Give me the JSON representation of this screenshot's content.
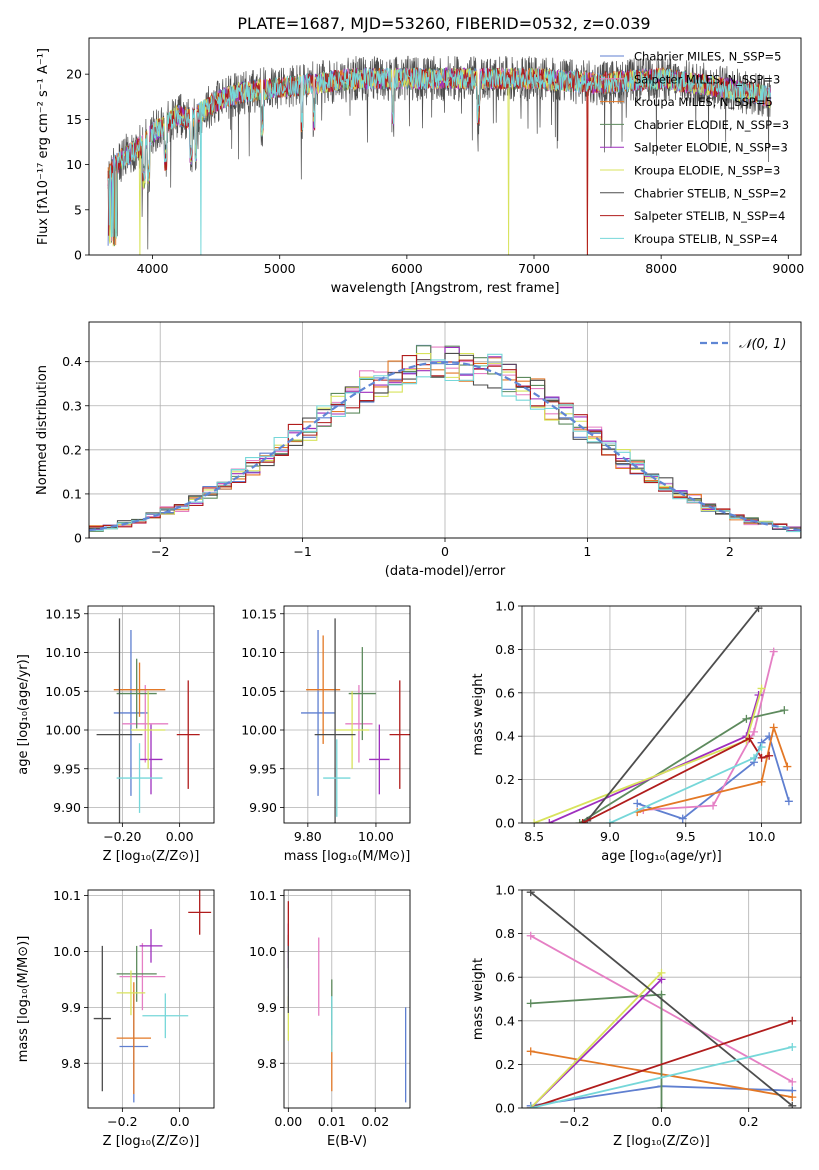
{
  "chart_data": [
    {
      "id": "spectrum",
      "type": "line",
      "title": "PLATE=1687, MJD=53260, FIBERID=0532, z=0.039",
      "xlabel": "wavelength [Angstrom, rest frame]",
      "ylabel": "Flux [fλ10⁻¹⁷ erg cm⁻² s⁻¹ A⁻¹]",
      "xlim": [
        3500,
        9100
      ],
      "ylim": [
        0,
        24
      ],
      "xticks": [
        4000,
        5000,
        6000,
        7000,
        8000,
        9000
      ],
      "yticks": [
        0,
        5,
        10,
        15,
        20
      ],
      "grid": false,
      "legend_position": "top-right",
      "continuum": {
        "x": [
          3650,
          3700,
          3800,
          3900,
          4000,
          4100,
          4200,
          4300,
          4400,
          4500,
          4700,
          5000,
          5300,
          5600,
          6000,
          6500,
          7000,
          7500,
          8000,
          8500,
          8850
        ],
        "y": [
          8.5,
          10,
          11,
          12,
          13.5,
          14.5,
          15.5,
          15,
          16,
          17,
          18,
          18.5,
          19,
          19.5,
          19.5,
          19.5,
          19.5,
          19,
          19.5,
          18.5,
          17.5
        ]
      },
      "series": [
        {
          "name": "Chabrier MILES, N_SSP=5",
          "color": "#5f7fd0"
        },
        {
          "name": "Salpeter MILES, N_SSP=3",
          "color": "#e57fc4"
        },
        {
          "name": "Kroupa MILES, N_SSP=5",
          "color": "#e37826"
        },
        {
          "name": "Chabrier ELODIE, N_SSP=3",
          "color": "#5d8a5d"
        },
        {
          "name": "Salpeter ELODIE, N_SSP=3",
          "color": "#9e2fbe"
        },
        {
          "name": "Kroupa ELODIE, N_SSP=3",
          "color": "#d8e35c"
        },
        {
          "name": "Chabrier STELIB, N_SSP=2",
          "color": "#4d4d4d"
        },
        {
          "name": "Salpeter STELIB, N_SSP=4",
          "color": "#b01c1c"
        },
        {
          "name": "Kroupa STELIB, N_SSP=4",
          "color": "#76d7d9"
        }
      ]
    },
    {
      "id": "residuals",
      "type": "line",
      "xlabel": "(data-model)/error",
      "ylabel": "Normed distribution",
      "xlim": [
        -2.5,
        2.5
      ],
      "ylim": [
        0,
        0.49
      ],
      "xticks": [
        -2,
        -1,
        0,
        1,
        2
      ],
      "yticks": [
        0.0,
        0.1,
        0.2,
        0.3,
        0.4
      ],
      "grid": true,
      "legend": [
        {
          "name": "𝒩(0, 1)",
          "style": "dashed",
          "color": "#5f86d4"
        }
      ],
      "legend_position": "top-right"
    },
    {
      "id": "age_vs_Z",
      "type": "scatter",
      "xlabel": "Z [log₁₀(Z/Z⊙)]",
      "ylabel": "age  [log₁₀(age/yr)]",
      "xlim": [
        -0.32,
        0.12
      ],
      "ylim": [
        9.88,
        10.16
      ],
      "xticks": [
        -0.2,
        0.0
      ],
      "yticks": [
        9.9,
        9.95,
        10.0,
        10.05,
        10.1,
        10.15
      ],
      "grid": true,
      "points": [
        {
          "color": "#5f7fd0",
          "x": -0.17,
          "xerr": 0.06,
          "y": 10.022,
          "yerr": 0.107
        },
        {
          "color": "#e57fc4",
          "x": -0.12,
          "xerr": 0.08,
          "y": 10.008,
          "yerr": 0.05
        },
        {
          "color": "#e37826",
          "x": -0.14,
          "xerr": 0.09,
          "y": 10.052,
          "yerr": 0.035
        },
        {
          "color": "#5d8a5d",
          "x": -0.15,
          "xerr": 0.07,
          "y": 10.047,
          "yerr": 0.045
        },
        {
          "color": "#9e2fbe",
          "x": -0.1,
          "xerr": 0.04,
          "y": 9.962,
          "yerr": 0.045
        },
        {
          "color": "#d8e35c",
          "x": -0.11,
          "xerr": 0.06,
          "y": 10.0,
          "yerr": 0.05
        },
        {
          "color": "#4d4d4d",
          "x": -0.21,
          "xerr": 0.08,
          "y": 9.994,
          "yerr": 0.15
        },
        {
          "color": "#b01c1c",
          "x": 0.03,
          "xerr": 0.04,
          "y": 9.994,
          "yerr": 0.07
        },
        {
          "color": "#76d7d9",
          "x": -0.14,
          "xerr": 0.08,
          "y": 9.938,
          "yerr": 0.045
        }
      ]
    },
    {
      "id": "age_vs_mass",
      "type": "scatter",
      "xlabel": "mass [log₁₀(M/M⊙)]",
      "ylabel": "",
      "xlim": [
        9.73,
        10.1
      ],
      "ylim": [
        9.88,
        10.16
      ],
      "xticks": [
        9.8,
        10.0
      ],
      "yticks": [
        9.9,
        9.95,
        10.0,
        10.05,
        10.1,
        10.15
      ],
      "grid": true,
      "points": [
        {
          "color": "#5f7fd0",
          "x": 9.83,
          "xerr": 0.05,
          "y": 10.022,
          "yerr": 0.107
        },
        {
          "color": "#e57fc4",
          "x": 9.95,
          "xerr": 0.04,
          "y": 10.008,
          "yerr": 0.05
        },
        {
          "color": "#e37826",
          "x": 9.845,
          "xerr": 0.05,
          "y": 10.052,
          "yerr": 0.07
        },
        {
          "color": "#5d8a5d",
          "x": 9.96,
          "xerr": 0.04,
          "y": 10.047,
          "yerr": 0.06
        },
        {
          "color": "#9e2fbe",
          "x": 10.01,
          "xerr": 0.03,
          "y": 9.962,
          "yerr": 0.045
        },
        {
          "color": "#d8e35c",
          "x": 9.93,
          "xerr": 0.05,
          "y": 10.0,
          "yerr": 0.05
        },
        {
          "color": "#4d4d4d",
          "x": 9.88,
          "xerr": 0.06,
          "y": 9.994,
          "yerr": 0.15
        },
        {
          "color": "#b01c1c",
          "x": 10.07,
          "xerr": 0.03,
          "y": 9.994,
          "yerr": 0.07
        },
        {
          "color": "#76d7d9",
          "x": 9.885,
          "xerr": 0.04,
          "y": 9.938,
          "yerr": 0.05
        }
      ]
    },
    {
      "id": "weight_vs_age",
      "type": "line",
      "xlabel": "age  [log₁₀(age/yr)]",
      "ylabel": "mass weight",
      "xlim": [
        8.42,
        10.26
      ],
      "ylim": [
        0,
        1.0
      ],
      "xticks": [
        8.5,
        9.0,
        9.5,
        10.0
      ],
      "yticks": [
        0.0,
        0.2,
        0.4,
        0.6,
        0.8,
        1.0
      ],
      "grid": true,
      "series": [
        {
          "color": "#5f7fd0",
          "x": [
            9.18,
            9.48,
            9.95,
            10.0,
            10.05,
            10.18
          ],
          "y": [
            0.09,
            0.02,
            0.28,
            0.37,
            0.4,
            0.1
          ]
        },
        {
          "color": "#e57fc4",
          "x": [
            9.22,
            9.68,
            9.95,
            10.08
          ],
          "y": [
            0.06,
            0.08,
            0.42,
            0.79
          ]
        },
        {
          "color": "#e37826",
          "x": [
            9.18,
            10.0,
            10.08,
            10.17
          ],
          "y": [
            0.05,
            0.19,
            0.44,
            0.26
          ]
        },
        {
          "color": "#5d8a5d",
          "x": [
            8.8,
            9.9,
            10.15
          ],
          "y": [
            0.0,
            0.48,
            0.52
          ]
        },
        {
          "color": "#9e2fbe",
          "x": [
            8.6,
            9.9,
            9.98
          ],
          "y": [
            0.0,
            0.4,
            0.59
          ]
        },
        {
          "color": "#d8e35c",
          "x": [
            8.5,
            9.9,
            10.0
          ],
          "y": [
            0.0,
            0.38,
            0.62
          ]
        },
        {
          "color": "#4d4d4d",
          "x": [
            8.85,
            9.98
          ],
          "y": [
            0.01,
            0.99
          ]
        },
        {
          "color": "#b01c1c",
          "x": [
            8.82,
            9.92,
            10.0,
            10.05
          ],
          "y": [
            0.0,
            0.39,
            0.3,
            0.31
          ]
        },
        {
          "color": "#76d7d9",
          "x": [
            9.0,
            9.95,
            10.0
          ],
          "y": [
            0.0,
            0.3,
            0.35
          ]
        }
      ]
    },
    {
      "id": "mass_vs_Z",
      "type": "scatter",
      "xlabel": "Z [log₁₀(Z/Z⊙)]",
      "ylabel": "mass [log₁₀(M/M⊙)]",
      "xlim": [
        -0.32,
        0.12
      ],
      "ylim": [
        9.72,
        10.11
      ],
      "xticks": [
        -0.2,
        0.0
      ],
      "yticks": [
        9.8,
        9.9,
        10.0,
        10.1
      ],
      "grid": true,
      "points": [
        {
          "color": "#5f7fd0",
          "x": -0.16,
          "xerr": 0.05,
          "y": 9.83,
          "yerr": 0.1
        },
        {
          "color": "#e57fc4",
          "x": -0.13,
          "xerr": 0.08,
          "y": 9.955,
          "yerr": 0.06
        },
        {
          "color": "#e37826",
          "x": -0.16,
          "xerr": 0.06,
          "y": 9.845,
          "yerr": 0.1
        },
        {
          "color": "#5d8a5d",
          "x": -0.15,
          "xerr": 0.07,
          "y": 9.96,
          "yerr": 0.05
        },
        {
          "color": "#9e2fbe",
          "x": -0.1,
          "xerr": 0.04,
          "y": 10.01,
          "yerr": 0.03
        },
        {
          "color": "#d8e35c",
          "x": -0.17,
          "xerr": 0.05,
          "y": 9.926,
          "yerr": 0.04
        },
        {
          "color": "#4d4d4d",
          "x": -0.27,
          "xerr": 0.03,
          "y": 9.88,
          "yerr": 0.13
        },
        {
          "color": "#b01c1c",
          "x": 0.07,
          "xerr": 0.04,
          "y": 10.07,
          "yerr": 0.04
        },
        {
          "color": "#76d7d9",
          "x": -0.05,
          "xerr": 0.08,
          "y": 9.885,
          "yerr": 0.04
        }
      ]
    },
    {
      "id": "mass_vs_EBV",
      "type": "scatter",
      "xlabel": "E(B-V)",
      "ylabel": "",
      "xlim": [
        -0.001,
        0.028
      ],
      "ylim": [
        9.72,
        10.11
      ],
      "xticks": [
        0.0,
        0.01,
        0.02
      ],
      "yticks": [
        9.8,
        9.9,
        10.0,
        10.1
      ],
      "grid": true,
      "points": [
        {
          "color": "#5f7fd0",
          "x": 0.027,
          "xerr": 0,
          "y": 9.815,
          "yerr": 0.085
        },
        {
          "color": "#e57fc4",
          "x": 0.007,
          "xerr": 0,
          "y": 9.955,
          "yerr": 0.07
        },
        {
          "color": "#e37826",
          "x": 0.01,
          "xerr": 0,
          "y": 9.8,
          "yerr": 0.05
        },
        {
          "color": "#5d8a5d",
          "x": 0.01,
          "xerr": 0,
          "y": 9.9,
          "yerr": 0.05
        },
        {
          "color": "#9e2fbe",
          "x": 0.0,
          "xerr": 0,
          "y": 10.01,
          "yerr": 0.04
        },
        {
          "color": "#d8e35c",
          "x": 0.0,
          "xerr": 0,
          "y": 9.88,
          "yerr": 0.04
        },
        {
          "color": "#4d4d4d",
          "x": 0.0,
          "xerr": 0,
          "y": 9.96,
          "yerr": 0.07
        },
        {
          "color": "#b01c1c",
          "x": 0.0,
          "xerr": 0,
          "y": 10.05,
          "yerr": 0.04
        },
        {
          "color": "#76d7d9",
          "x": 0.01,
          "xerr": 0,
          "y": 9.87,
          "yerr": 0.05
        }
      ]
    },
    {
      "id": "weight_vs_Z",
      "type": "line",
      "xlabel": "Z [log₁₀(Z/Z⊙)]",
      "ylabel": "mass weight",
      "xlim": [
        -0.32,
        0.32
      ],
      "ylim": [
        0,
        1.0
      ],
      "xticks": [
        -0.2,
        0.0,
        0.2
      ],
      "yticks": [
        0.0,
        0.2,
        0.4,
        0.6,
        0.8,
        1.0
      ],
      "grid": true,
      "series": [
        {
          "color": "#5f7fd0",
          "x": [
            -0.3,
            0.0,
            0.3
          ],
          "y": [
            0.01,
            0.1,
            0.08
          ]
        },
        {
          "color": "#e57fc4",
          "x": [
            -0.3,
            0.3
          ],
          "y": [
            0.79,
            0.12
          ]
        },
        {
          "color": "#e37826",
          "x": [
            -0.3,
            0.3
          ],
          "y": [
            0.26,
            0.05
          ]
        },
        {
          "color": "#5d8a5d",
          "x": [
            -0.3,
            0.0,
            0.0
          ],
          "y": [
            0.48,
            0.52,
            0.0
          ]
        },
        {
          "color": "#9e2fbe",
          "x": [
            -0.3,
            0.0
          ],
          "y": [
            0.0,
            0.59
          ]
        },
        {
          "color": "#d8e35c",
          "x": [
            -0.3,
            0.0
          ],
          "y": [
            0.0,
            0.62
          ]
        },
        {
          "color": "#4d4d4d",
          "x": [
            -0.3,
            0.3
          ],
          "y": [
            0.99,
            0.01
          ]
        },
        {
          "color": "#b01c1c",
          "x": [
            -0.3,
            0.3
          ],
          "y": [
            0.0,
            0.4
          ]
        },
        {
          "color": "#76d7d9",
          "x": [
            -0.3,
            0.3
          ],
          "y": [
            0.0,
            0.28
          ]
        }
      ]
    }
  ]
}
